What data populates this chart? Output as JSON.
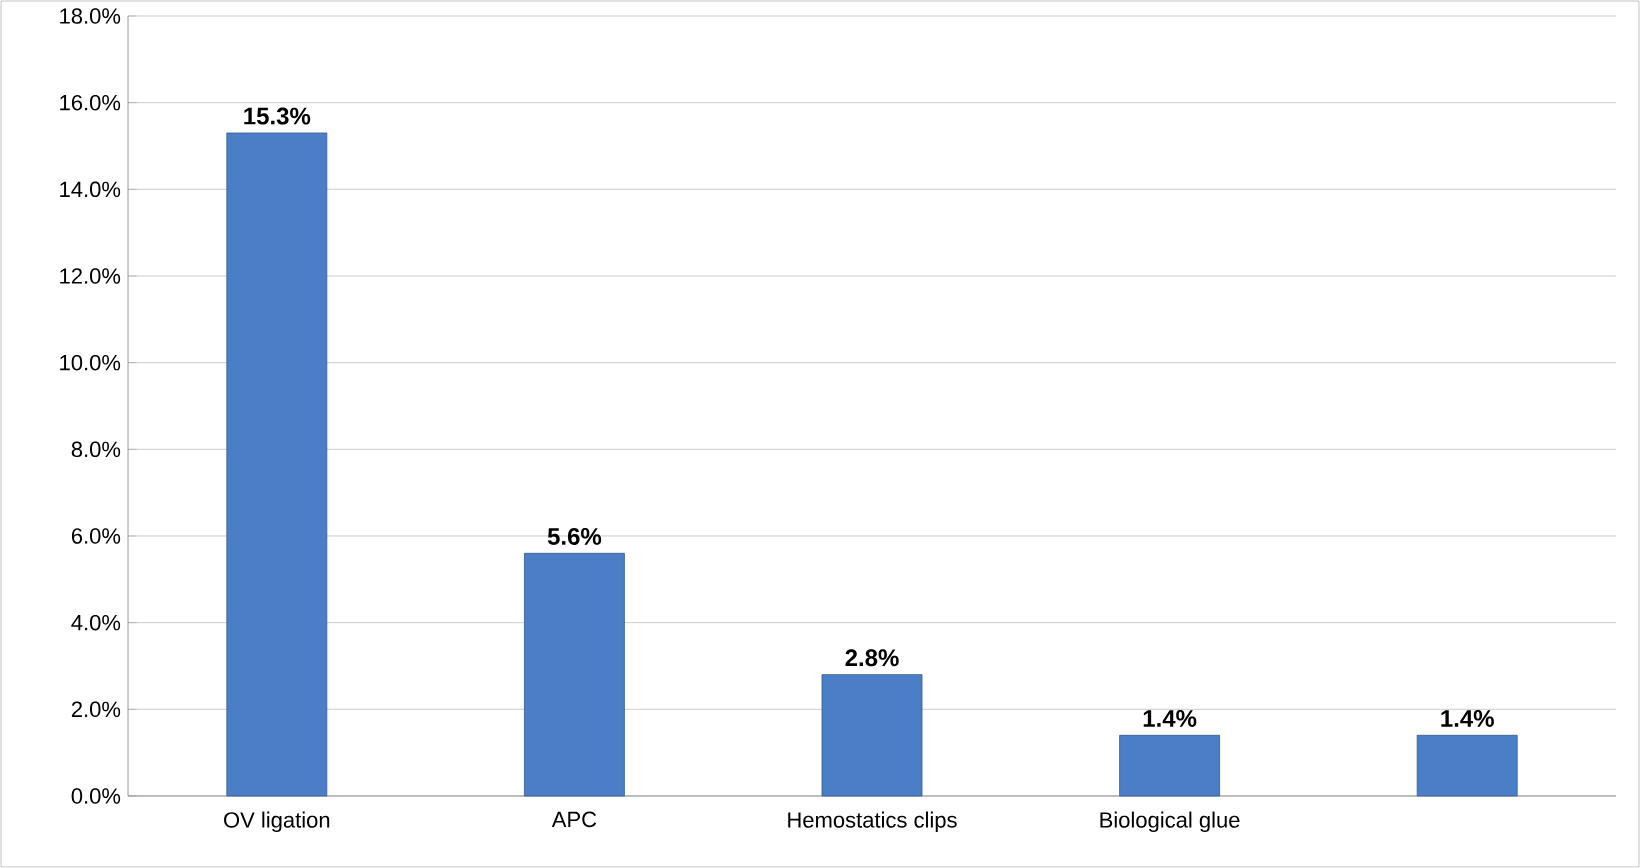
{
  "chart_data": {
    "type": "bar",
    "categories": [
      "OV ligation",
      "APC",
      "Hemostatics clips",
      "Biological glue",
      null
    ],
    "values": [
      15.3,
      5.6,
      2.8,
      1.4,
      1.4
    ],
    "value_labels": [
      "15.3%",
      "5.6%",
      "2.8%",
      "1.4%",
      "1.4%"
    ],
    "color": "#4a7fc8",
    "ylim": [
      0,
      18
    ],
    "yticks": [
      {
        "value": 0,
        "label": "0.0%"
      },
      {
        "value": 2,
        "label": "2.0%"
      },
      {
        "value": 4,
        "label": "4.0%"
      },
      {
        "value": 6,
        "label": "6.0%"
      },
      {
        "value": 8,
        "label": "8.0%"
      },
      {
        "value": 10,
        "label": "10.0%"
      },
      {
        "value": 12,
        "label": "12.0%"
      },
      {
        "value": 14,
        "label": "14.0%"
      },
      {
        "value": 16,
        "label": "16.0%"
      },
      {
        "value": 18,
        "label": "18.0%"
      }
    ],
    "grid": "y"
  }
}
